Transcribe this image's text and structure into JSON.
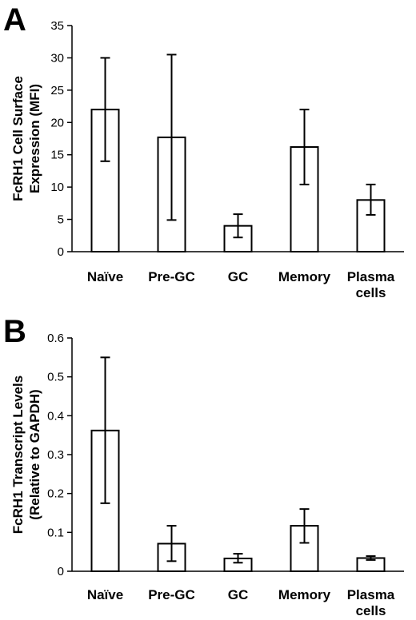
{
  "chart_data": [
    {
      "panel_label": "A",
      "type": "bar",
      "categories": [
        [
          "Naïve"
        ],
        [
          "Pre-GC"
        ],
        [
          "GC"
        ],
        [
          "Memory"
        ],
        [
          "Plasma",
          "cells"
        ]
      ],
      "values": [
        22.0,
        17.7,
        4.0,
        16.2,
        8.0
      ],
      "error_low": [
        14.0,
        4.9,
        2.2,
        10.4,
        5.7
      ],
      "error_high": [
        30.0,
        30.5,
        5.8,
        22.0,
        10.4
      ],
      "ylabel": [
        "FcRH1 Cell Surface",
        "Expression (MFI)"
      ],
      "ylim": [
        0,
        35
      ],
      "yticks": [
        "0",
        "5",
        "10",
        "15",
        "20",
        "25",
        "30",
        "35"
      ],
      "ytick_values": [
        0,
        5,
        10,
        15,
        20,
        25,
        30,
        35
      ],
      "grid": false,
      "legend": "none"
    },
    {
      "panel_label": "B",
      "type": "bar",
      "categories": [
        [
          "Naïve"
        ],
        [
          "Pre-GC"
        ],
        [
          "GC"
        ],
        [
          "Memory"
        ],
        [
          "Plasma",
          "cells"
        ]
      ],
      "values": [
        0.362,
        0.071,
        0.033,
        0.117,
        0.034
      ],
      "error_low": [
        0.175,
        0.026,
        0.022,
        0.073,
        0.029
      ],
      "error_high": [
        0.55,
        0.117,
        0.045,
        0.16,
        0.039
      ],
      "ylabel": [
        "FcRH1 Transcript Levels",
        "(Relative to GAPDH)"
      ],
      "ylim": [
        0,
        0.6
      ],
      "yticks": [
        "0",
        "0.1",
        "0.2",
        "0.3",
        "0.4",
        "0.5",
        "0.6"
      ],
      "ytick_values": [
        0,
        0.1,
        0.2,
        0.3,
        0.4,
        0.5,
        0.6
      ],
      "grid": false,
      "legend": "none"
    }
  ]
}
